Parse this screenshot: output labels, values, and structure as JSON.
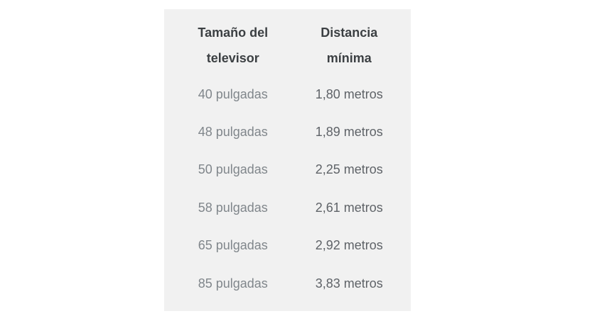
{
  "card": {
    "background_color": "#f1f1f1",
    "page_background_color": "#ffffff"
  },
  "table": {
    "headers": {
      "size": "Tamaño del televisor",
      "distance": "Distancia mínima"
    },
    "rows": [
      {
        "size": "40 pulgadas",
        "distance": "1,80 metros"
      },
      {
        "size": "48 pulgadas",
        "distance": "1,89 metros"
      },
      {
        "size": "50 pulgadas",
        "distance": "2,25 metros"
      },
      {
        "size": "58 pulgadas",
        "distance": "2,61 metros"
      },
      {
        "size": "65 pulgadas",
        "distance": "2,92 metros"
      },
      {
        "size": "85 pulgadas",
        "distance": "3,83 metros"
      }
    ],
    "header_text_color": "#3c4043",
    "size_column_text_color": "#80868b",
    "distance_column_text_color": "#5f6368"
  },
  "chart_data": {
    "type": "table",
    "columns": [
      "Tamaño del televisor",
      "Distancia mínima"
    ],
    "rows": [
      [
        "40 pulgadas",
        "1,80 metros"
      ],
      [
        "48 pulgadas",
        "1,89 metros"
      ],
      [
        "50 pulgadas",
        "2,25 metros"
      ],
      [
        "58 pulgadas",
        "2,61 metros"
      ],
      [
        "65 pulgadas",
        "2,92 metros"
      ],
      [
        "85 pulgadas",
        "3,83 metros"
      ]
    ],
    "sizes_inches": [
      40,
      48,
      50,
      58,
      65,
      85
    ],
    "min_distance_meters": [
      1.8,
      1.89,
      2.25,
      2.61,
      2.92,
      3.83
    ],
    "title": ""
  }
}
